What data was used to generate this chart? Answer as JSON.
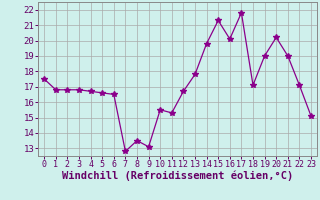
{
  "x": [
    0,
    1,
    2,
    3,
    4,
    5,
    6,
    7,
    8,
    9,
    10,
    11,
    12,
    13,
    14,
    15,
    16,
    17,
    18,
    19,
    20,
    21,
    22,
    23
  ],
  "y": [
    17.5,
    16.8,
    16.8,
    16.8,
    16.7,
    16.6,
    16.5,
    12.8,
    13.5,
    13.1,
    15.5,
    15.3,
    16.7,
    17.8,
    19.8,
    21.3,
    20.1,
    21.8,
    17.1,
    19.0,
    20.2,
    19.0,
    17.1,
    15.1
  ],
  "line_color": "#8B008B",
  "marker": "*",
  "marker_size": 4,
  "bg_color": "#cff0ec",
  "grid_color": "#aaaaaa",
  "xlabel": "Windchill (Refroidissement éolien,°C)",
  "ylim": [
    12.5,
    22.5
  ],
  "xlim": [
    -0.5,
    23.5
  ],
  "yticks": [
    13,
    14,
    15,
    16,
    17,
    18,
    19,
    20,
    21,
    22
  ],
  "xticks": [
    0,
    1,
    2,
    3,
    4,
    5,
    6,
    7,
    8,
    9,
    10,
    11,
    12,
    13,
    14,
    15,
    16,
    17,
    18,
    19,
    20,
    21,
    22,
    23
  ],
  "axis_fontsize": 6.5,
  "xlabel_fontsize": 7.5
}
